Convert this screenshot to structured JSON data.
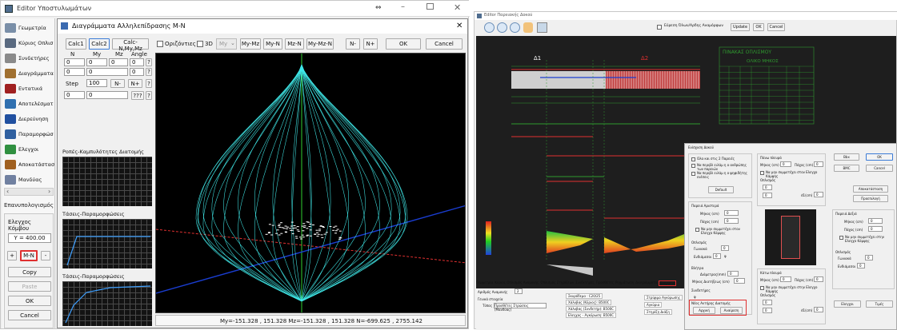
{
  "left": {
    "window_title": "Editor Υποστυλωμάτων",
    "window_pin": "⇔",
    "sidebar": [
      {
        "label": "Γεωμετρία",
        "icon": "geometry-icon",
        "color": "#7a8fa8"
      },
      {
        "label": "Κύριος Οπλισ",
        "icon": "main-reinforcement-icon",
        "color": "#5a6a80"
      },
      {
        "label": "Συνδετήρες",
        "icon": "stirrups-icon",
        "color": "#8a8a8a"
      },
      {
        "label": "Διαγράμματα",
        "icon": "diagrams-icon",
        "color": "#a07030"
      },
      {
        "label": "Εντατικά",
        "icon": "internal-forces-icon",
        "color": "#a02020"
      },
      {
        "label": "Αποτελέσματ",
        "icon": "results-icon",
        "color": "#3070b0"
      },
      {
        "label": "Διερεύνηση",
        "icon": "investigation-icon",
        "color": "#2050a0"
      },
      {
        "label": "Παραμορφώσ",
        "icon": "deformation-icon",
        "color": "#3060a0"
      },
      {
        "label": "Ελεγχοι",
        "icon": "checks-icon",
        "color": "#309040"
      },
      {
        "label": "Αποκατάστασ",
        "icon": "restoration-icon",
        "color": "#a06020"
      },
      {
        "label": "Μανδύας",
        "icon": "jacket-icon",
        "color": "#7080a0"
      }
    ],
    "node_group": "Επανυπολογισμός",
    "node_check_label": "Ελεγχος Κόμβου",
    "y_value": "Y = 400.00",
    "nav_prev": "+",
    "mn_button": "M-N",
    "nav_next": "-",
    "copy_label": "Copy",
    "paste_label": "Paste",
    "ok_label": "OK",
    "cancel_label": "Cancel"
  },
  "dialog": {
    "title": "Διαγράμματα Αλληλεπίδρασης M-N",
    "close": "✕",
    "calc_buttons": [
      "Calc1",
      "Calc2",
      "Calc-N,My,Mz"
    ],
    "horizontal_label": "Οριζόντιες",
    "three_d_label": "3D",
    "my_dropdown": "My",
    "view_buttons": [
      "My-Mz",
      "My-N",
      "Mz-N",
      "My-Mz-N"
    ],
    "n_minus": "N-",
    "n_plus": "N+",
    "ok": "OK",
    "cancel": "Cancel",
    "headers": [
      "N",
      "My",
      "Mz",
      "Angle"
    ],
    "row1": [
      "0",
      "0",
      "0",
      "0"
    ],
    "step_label": "Step",
    "step_value": "100",
    "step_minus": "N-",
    "step_plus": "N+",
    "row3": [
      "0",
      "0",
      "0"
    ],
    "question": "?",
    "question2": "???",
    "flow_label": "Ροπές-Καμπυλότητες Διατομής",
    "stress_label1": "Τάσεις-Παραμορφώσεις",
    "stress_label2": "Τάσεις-Παραμορφώσεις",
    "status_text": "My=-151.328 , 151.328 Mz=-151.328 , 151.328 N=-699.625 , 2755.142"
  },
  "right": {
    "window_title": "Editor Παρειακής Δοκού",
    "show_all_label": "Εύρεση Όλων/Αρδης Αναμόρφων",
    "update": "Update",
    "ok": "OK",
    "cancel": "Cancel",
    "span1_label": "Δ1",
    "span2_label": "Δ2",
    "table_title": "ΠΙΝΑΚΑΣ ΟΠΛΙΣΜΟΥ",
    "table_sub": "ΟΛΙΚΟ ΜΗΚΟΣ",
    "bottom_tabs": [
      "Γεωμετρία",
      "Κύριος Οπλισμός Αναμονής",
      "Οπλισμός Στηρίξεων",
      "Συνδετήρες",
      "Προσθέτες",
      "Ρηγμάτωση",
      "Διαγράμματα",
      "Ενεργειά"
    ],
    "active_tab": "Ενεργειά",
    "recalc_label": "Αριθμός Αναμονής",
    "recalc_value": "2",
    "general_label": "Γενικά στοιχεία",
    "type_label": "Τύπος",
    "type_value": "Προσθέτες Στρώσεις (Μανδύας)",
    "conc_label": "Σκυρόδεμα : C20/25",
    "steel_label": "Χάλυβας (Κύριος): B500C",
    "steel2_label": "Χάλυβας (Συνδετήρ): B500C",
    "pump_label": "Ελεγχος - Αγκύρωση: B500C",
    "support_label": "Στρίψιμο Αγκύρωσης",
    "anchor_label": "Αγκύρια",
    "support2_label": "Στηρίξη Διάξη",
    "overlay": {
      "title": "Ενίσχυση Δοκού",
      "opt1": "Ολα και στις 2 Παρειές",
      "opt2": "Να περιβλ ειλάμ η ο ανθρώπης των παρειών",
      "opt3": "Να περιβλ ειλάμ η ο ψηφιδήτης ενέσεις",
      "default_btn": "Default",
      "side_label": "Παρειά Αριστερά",
      "width_label": "Μήκος (cm)",
      "width_value": "0",
      "thick_label": "Πάχος (cm)",
      "thick_value": "0",
      "consider_label": "Να μην συμμετέχει στον Ελεγχο Κάμψης",
      "reinf_label": "Οπλισμός",
      "main_label": "Γωνιακά",
      "main_value": "0",
      "ends_label": "Ενδιάμεσοι",
      "ends_value": "0",
      "stirr_label": "Βλήτρα",
      "stirr2_label": "Διάμετρος(mm)",
      "stirr2_value": "0",
      "len_label": "Μήκος Διατήξεως (cm)",
      "len_value": "0",
      "link_label": "Συνδετήρες",
      "phi_label": "φ",
      "new_label": "Νέος Αντήρης Διατομής",
      "apply_btn": "Αρχική",
      "undo_btn": "Αναίρεση",
      "top_label": "Πάνω πλευρά",
      "top_w_label": "Μήκος (cm)",
      "top_w_value": "0",
      "top_t_label": "Πάχος (cm)",
      "top_t_value": "0",
      "top_consider": "Να μην συμμετέχει στον Ελεγχο Κάμψης",
      "top_reinf": "Οπλισμός",
      "top_d_label": "d1(cm)",
      "top_d_value": "0",
      "bottom_label": "Κάτω πλευρά",
      "bot_w_label": "Μήκος (cm)",
      "bot_w_value": "0",
      "bot_t_label": "Πάχος (cm)",
      "bot_t_value": "0",
      "bot_consider": "Να μην συμμετέχει στην Ελεγχο Κάμψης",
      "bot_reinf": "Οπλισμός",
      "bot_d_label": "d1(cm)",
      "bot_d_value": "0",
      "right_side_label": "Παρειά Δεξιά",
      "rs_w_label": "Μήκος (cm)",
      "rs_w_value": "0",
      "rs_t_label": "Πάχος (cm)",
      "rs_t_value": "0",
      "rs_consider": "Να μην συμμετέχει στην Ελεγχο Κάμψης",
      "rs_reinf": "Οπλισμός",
      "rs_main": "Γωνιακά",
      "rs_main_value": "0",
      "rs_ends": "Ενδιάμεσοι",
      "rs_ends_value": "0",
      "btn_bbox": "Bbx",
      "btn_bmc": "BMC",
      "btn_ok": "OK",
      "btn_cancel": "Cancel",
      "btn_restore": "Αποκατάσταση",
      "btn_default2": "Προεπιλογή",
      "btn_checks": "Ελεγχοι",
      "btn_values": "Τιμές"
    }
  },
  "colors": {
    "accent_red": "#e03030",
    "mesh_cyan": "#40e8e8",
    "axis_green": "#30d030",
    "axis_blue": "#1a3dd0",
    "cad_green": "#2f9a2f"
  }
}
